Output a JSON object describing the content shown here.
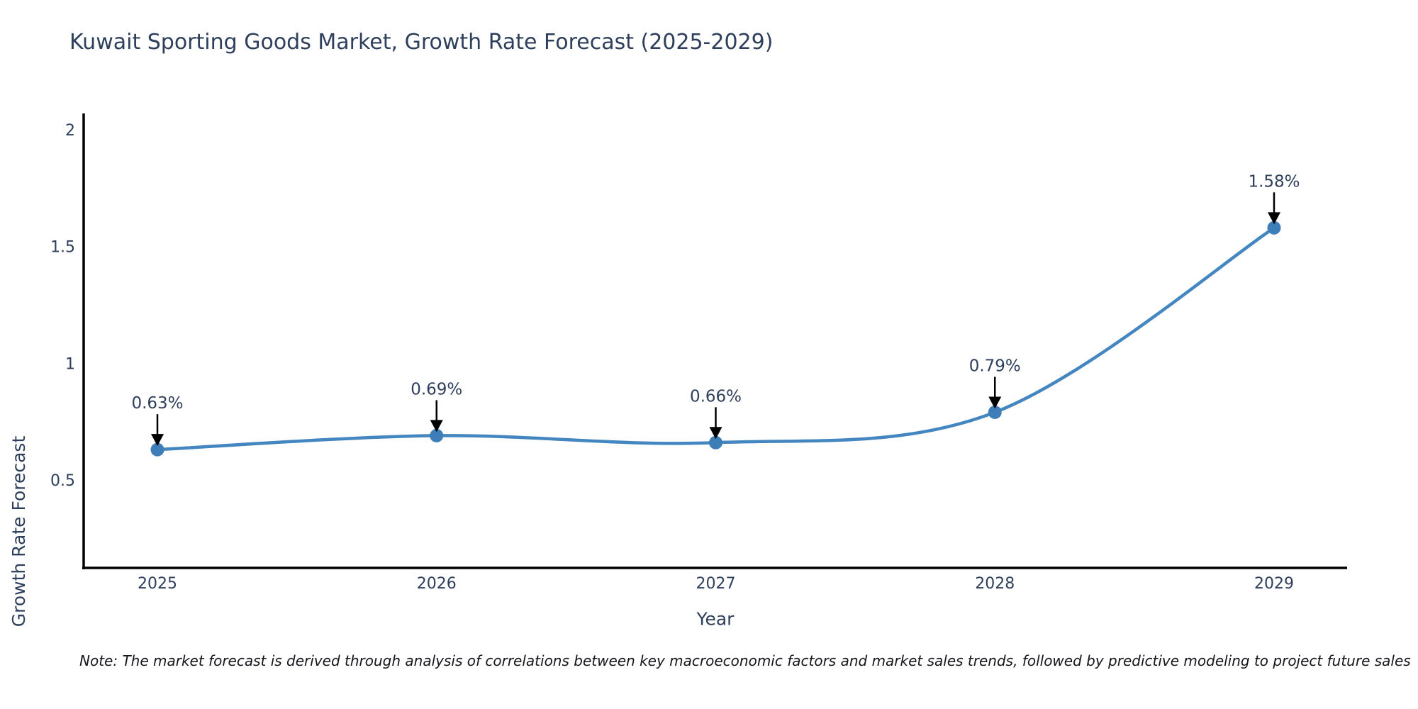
{
  "title": "Kuwait Sporting Goods Market, Growth Rate Forecast (2025-2029)",
  "note": "Note: The market forecast is derived through analysis of correlations between key macroeconomic factors and market sales trends, followed by predictive modeling to project future sales",
  "chart_data": {
    "type": "line",
    "title": "Kuwait Sporting Goods Market, Growth Rate Forecast (2025-2029)",
    "x": [
      2025,
      2026,
      2027,
      2028,
      2029
    ],
    "xtick_labels": [
      "2025",
      "2026",
      "2027",
      "2028",
      "2029"
    ],
    "values": [
      0.63,
      0.69,
      0.66,
      0.79,
      1.58
    ],
    "point_labels": [
      "0.63%",
      "0.69%",
      "0.66%",
      "0.79%",
      "1.58%"
    ],
    "xlabel": "Year",
    "ylabel": "Growth Rate Forecast",
    "yticks": [
      0.5,
      1,
      1.5,
      2
    ],
    "ytick_labels": [
      "0.5",
      "1",
      "1.5",
      "2"
    ],
    "ylim": [
      0.12,
      2.07
    ],
    "grid": false,
    "legend": "none",
    "smooth_line": true,
    "annotation_style": "value label above point with downward black arrow",
    "colors": {
      "line": "#4486c0",
      "marker": "#3d7eb9",
      "axis": "#000000",
      "tick_text": "#2e3f5c",
      "annotation_text": "#2e3f5c",
      "arrow": "#000000",
      "background": "#ffffff"
    }
  }
}
